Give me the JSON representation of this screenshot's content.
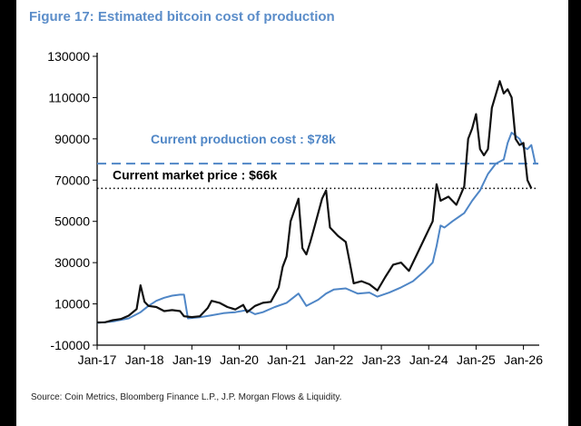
{
  "figure": {
    "title": "Figure 17: Estimated bitcoin cost of production",
    "source": "Source: Coin Metrics, Bloomberg Finance L.P., J.P. Morgan Flows & Liquidity."
  },
  "colors": {
    "price_line": "#111111",
    "cost_line": "#4f86c6",
    "title": "#5b8dc9",
    "cost_ref": "#4f86c6",
    "price_ref": "#000000"
  },
  "chart_data": {
    "type": "line",
    "title": "Figure 17: Estimated bitcoin cost of production",
    "xlabel": "",
    "ylabel": "",
    "x_ticks": [
      "Jan-17",
      "Jan-18",
      "Jan-19",
      "Jan-20",
      "Jan-21",
      "Jan-22",
      "Jan-23",
      "Jan-24",
      "Jan-25",
      "Jan-26"
    ],
    "y_ticks": [
      130000,
      110000,
      90000,
      70000,
      50000,
      30000,
      10000,
      -10000
    ],
    "ylim": [
      -10000,
      130000
    ],
    "xlim": [
      "2017-01",
      "2026-05"
    ],
    "grid": false,
    "legend": "none",
    "series": [
      {
        "key": "market_price",
        "x": [
          "2017-01",
          "2017-03",
          "2017-05",
          "2017-07",
          "2017-09",
          "2017-11",
          "2017-12",
          "2018-01",
          "2018-02",
          "2018-04",
          "2018-06",
          "2018-08",
          "2018-10",
          "2018-11",
          "2019-01",
          "2019-03",
          "2019-05",
          "2019-06",
          "2019-08",
          "2019-10",
          "2019-12",
          "2020-02",
          "2020-03",
          "2020-05",
          "2020-07",
          "2020-09",
          "2020-11",
          "2020-12",
          "2021-01",
          "2021-02",
          "2021-04",
          "2021-05",
          "2021-06",
          "2021-07",
          "2021-08",
          "2021-10",
          "2021-11",
          "2021-12",
          "2022-02",
          "2022-04",
          "2022-05",
          "2022-06",
          "2022-08",
          "2022-10",
          "2022-12",
          "2023-02",
          "2023-04",
          "2023-06",
          "2023-08",
          "2023-10",
          "2023-12",
          "2024-02",
          "2024-03",
          "2024-04",
          "2024-06",
          "2024-08",
          "2024-10",
          "2024-11",
          "2024-12",
          "2025-01",
          "2025-02",
          "2025-03",
          "2025-04",
          "2025-05",
          "2025-07",
          "2025-08",
          "2025-09",
          "2025-10",
          "2025-11",
          "2025-12",
          "2026-01",
          "2026-02",
          "2026-03"
        ],
        "y": [
          1000,
          1100,
          2100,
          2700,
          4300,
          7500,
          19000,
          11000,
          9000,
          8500,
          6500,
          7000,
          6500,
          4000,
          3600,
          4000,
          8000,
          11500,
          10500,
          8500,
          7300,
          9500,
          6000,
          9000,
          10500,
          11000,
          18000,
          28000,
          33000,
          50000,
          61000,
          37000,
          34000,
          40000,
          47000,
          61000,
          65000,
          47000,
          43000,
          40000,
          30000,
          20000,
          21000,
          19500,
          16500,
          23000,
          29000,
          30000,
          26000,
          34000,
          42000,
          50000,
          68000,
          60000,
          62000,
          58000,
          67000,
          90000,
          95000,
          102000,
          85000,
          82000,
          85000,
          105000,
          118000,
          112000,
          114000,
          110000,
          90000,
          87000,
          88000,
          70000,
          66000
        ]
      },
      {
        "key": "production_cost",
        "x": [
          "2017-01",
          "2017-05",
          "2017-09",
          "2017-12",
          "2018-02",
          "2018-04",
          "2018-06",
          "2018-08",
          "2018-10",
          "2018-11",
          "2018-12",
          "2019-03",
          "2019-06",
          "2019-09",
          "2019-12",
          "2020-03",
          "2020-05",
          "2020-07",
          "2020-10",
          "2021-01",
          "2021-04",
          "2021-06",
          "2021-09",
          "2021-11",
          "2022-01",
          "2022-04",
          "2022-07",
          "2022-10",
          "2022-12",
          "2023-03",
          "2023-06",
          "2023-09",
          "2023-12",
          "2024-02",
          "2024-03",
          "2024-04",
          "2024-05",
          "2024-07",
          "2024-10",
          "2024-12",
          "2025-02",
          "2025-04",
          "2025-06",
          "2025-08",
          "2025-09",
          "2025-10",
          "2025-12",
          "2026-01",
          "2026-02",
          "2026-03",
          "2026-04"
        ],
        "y": [
          800,
          1500,
          3000,
          6000,
          9000,
          11500,
          13000,
          14000,
          14500,
          14500,
          3000,
          3500,
          4500,
          5500,
          6000,
          7000,
          5000,
          6000,
          8500,
          10500,
          15000,
          9000,
          12000,
          15000,
          17000,
          17500,
          15000,
          15500,
          13500,
          15500,
          18000,
          21000,
          26000,
          30000,
          38000,
          48000,
          47000,
          50000,
          54000,
          60000,
          65000,
          73000,
          78000,
          80000,
          88000,
          93000,
          90000,
          86000,
          85000,
          87000,
          78000
        ]
      }
    ],
    "reference_lines": [
      {
        "key": "production_cost_ref",
        "label": "Current production cost : $78k",
        "y": 78000,
        "style": "dashed"
      },
      {
        "key": "market_price_ref",
        "label": "Current market price : $66k",
        "y": 66000,
        "style": "dotted"
      }
    ]
  }
}
